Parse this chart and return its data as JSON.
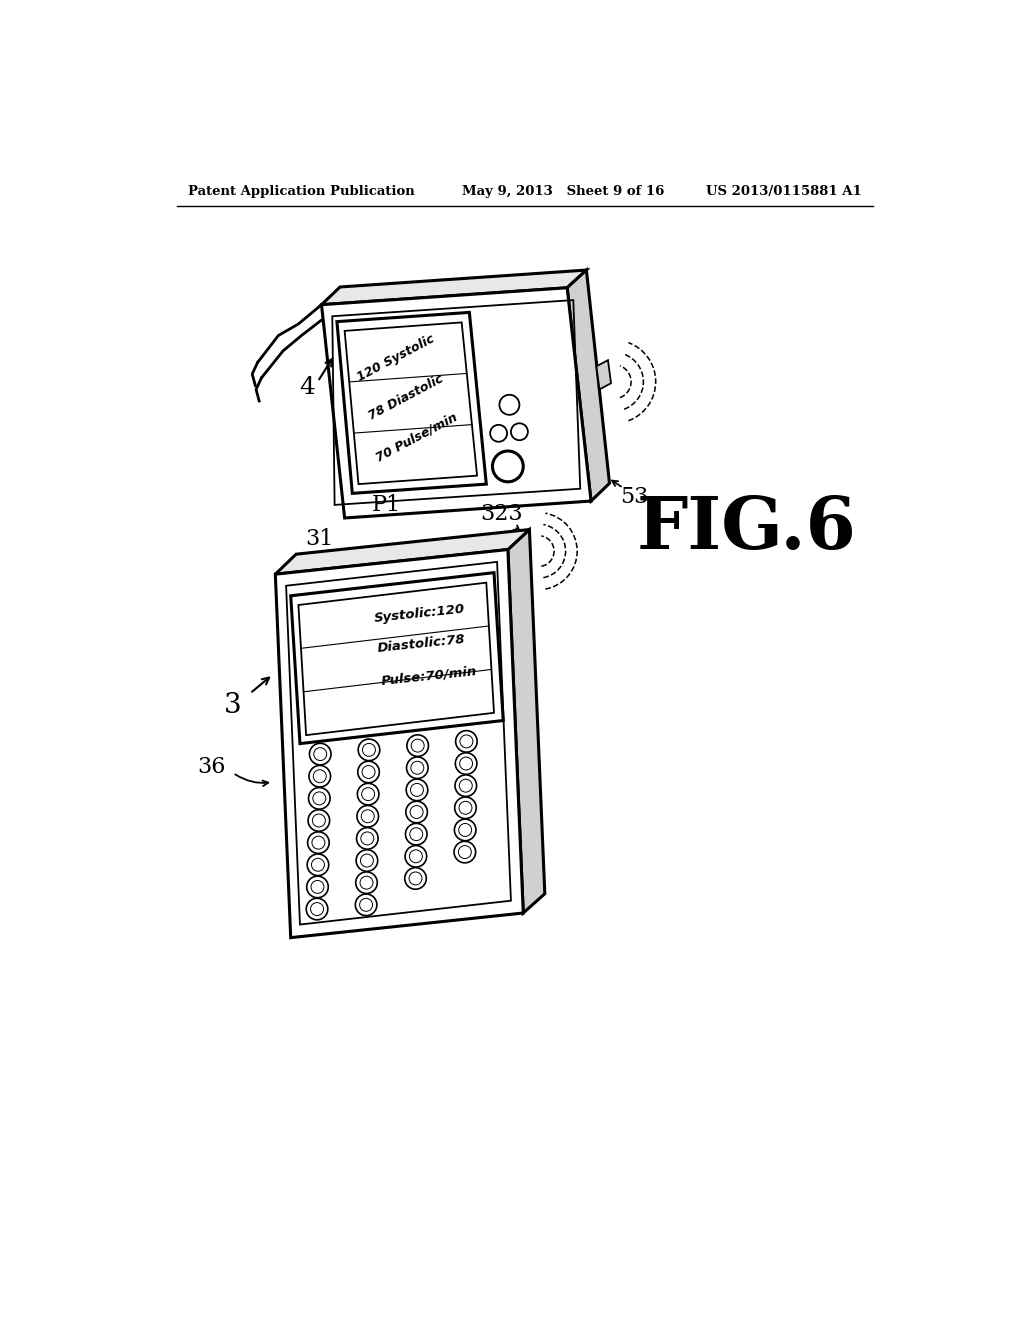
{
  "header_left": "Patent Application Publication",
  "header_mid": "May 9, 2013   Sheet 9 of 16",
  "header_right": "US 2013/0115881 A1",
  "fig_label": "FIG.6",
  "device1_label": "4",
  "device1_sub_label": "53",
  "device2_label": "3",
  "device2_sub_label1": "31",
  "device2_sub_label2": "36",
  "device2_sub_label3": "323",
  "device2_sub_label4": "P1",
  "screen1_lines": [
    "120 Systolic",
    "78 Diastolic",
    "70 Pulse/min"
  ],
  "screen2_lines": [
    "Systolic:120",
    "Diastolic:78",
    "Pulse:70/min"
  ],
  "bg_color": "#ffffff",
  "line_color": "#000000",
  "gray_light": "#e8e8e8",
  "gray_mid": "#d0d0d0"
}
